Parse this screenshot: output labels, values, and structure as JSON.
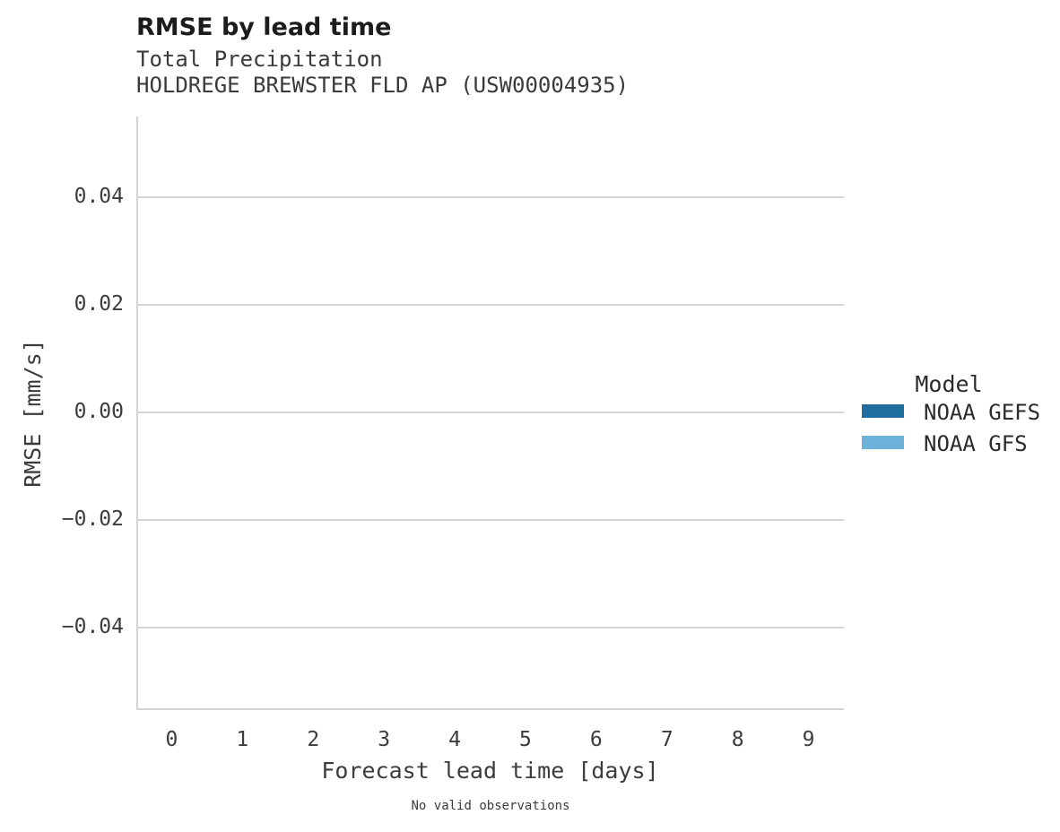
{
  "header": {
    "title": "RMSE by lead time",
    "subtitle": "Total Precipitation",
    "station": "HOLDREGE BREWSTER FLD AP (USW00004935)"
  },
  "x_axis": {
    "label": "Forecast lead time [days]",
    "ticks": [
      "0",
      "1",
      "2",
      "3",
      "4",
      "5",
      "6",
      "7",
      "8",
      "9"
    ]
  },
  "y_axis": {
    "label": "RMSE [mm/s]",
    "ticks": [
      {
        "label": "0.04",
        "value": 0.04
      },
      {
        "label": "0.02",
        "value": 0.02
      },
      {
        "label": "0.00",
        "value": 0.0
      },
      {
        "label": "−0.02",
        "value": -0.02
      },
      {
        "label": "−0.04",
        "value": -0.04
      }
    ]
  },
  "legend": {
    "title": "Model",
    "entries": [
      {
        "label": "NOAA GEFS",
        "color": "#1e6d9d"
      },
      {
        "label": "NOAA GFS",
        "color": "#6eb1da"
      }
    ]
  },
  "caption": "No valid observations",
  "colors": {
    "grid": "#d3d3d3",
    "text": "#3c3c3c",
    "title_text": "#1c1c1c",
    "noaa_gefs_blue": "#1e6d9d",
    "noaa_gfs_blue": "#6eb1da",
    "background": "#ffffff"
  },
  "chart_data": {
    "type": "bar",
    "title": "RMSE by lead time",
    "subtitle": [
      "Total Precipitation",
      "HOLDREGE BREWSTER FLD AP (USW00004935)"
    ],
    "categories": [
      0,
      1,
      2,
      3,
      4,
      5,
      6,
      7,
      8,
      9
    ],
    "series": [
      {
        "name": "NOAA GEFS",
        "color": "#1e6d9d",
        "values": []
      },
      {
        "name": "NOAA GFS",
        "color": "#6eb1da",
        "values": []
      }
    ],
    "xlabel": "Forecast lead time [days]",
    "ylabel": "RMSE [mm/s]",
    "ylim": [
      -0.055,
      0.055
    ],
    "yticks": [
      -0.04,
      -0.02,
      0.0,
      0.02,
      0.04
    ],
    "grid": "horizontal gridlines only",
    "legend_title": "Model",
    "legend_position": "right",
    "annotation": "No valid observations"
  }
}
